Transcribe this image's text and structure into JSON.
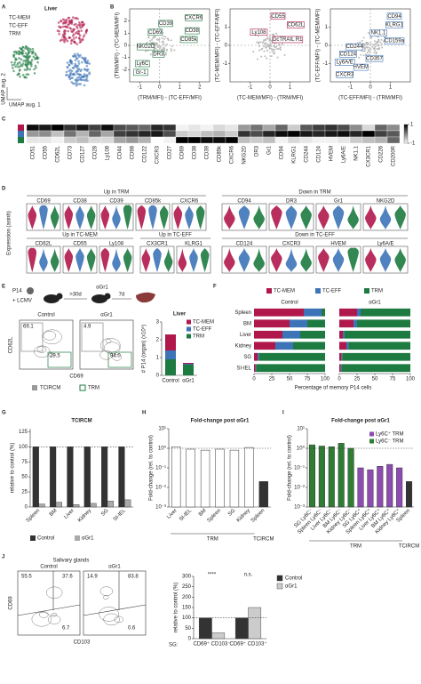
{
  "panels": {
    "labels": [
      "A",
      "B",
      "C",
      "D",
      "E",
      "F",
      "G",
      "H",
      "I",
      "J"
    ],
    "a": {
      "title": "Liver",
      "legend": [
        {
          "name": "TC-MEM",
          "color": "#b0174a"
        },
        {
          "name": "TC-EFF",
          "color": "#3d74b8"
        },
        {
          "name": "TRM",
          "color": "#1d7a40"
        }
      ],
      "x_label": "UMAP aug. 1",
      "y_label": "UMAP aug. 2"
    },
    "b": {
      "plots": [
        {
          "x_label": "(TRM/MFI) - (TC-EFF/MFI)",
          "y_label": "(TRM/MFI) - (TC-MEM/MFI)",
          "xlim": [
            -1.5,
            2.5
          ],
          "ylim": [
            -3,
            3
          ],
          "xticks": [
            -1,
            0,
            1,
            2
          ],
          "yticks": [
            -2,
            -1,
            0,
            1,
            2
          ],
          "genes": [
            "CXCR6",
            "CD39",
            "CD38",
            "CD69",
            "CD85k",
            "NKG2D",
            "DR3",
            "Ly6C",
            "Gr-1"
          ]
        },
        {
          "x_label": "(TC-MEM/MFI) - (TRM/MFI)",
          "y_label": "(TC-MEM/MFI) - (TC-EFF/MFI)",
          "xlim": [
            -2,
            2
          ],
          "ylim": [
            -2,
            2
          ],
          "xticks": [
            -1,
            0,
            1
          ],
          "yticks": [
            -1,
            0,
            1
          ],
          "genes": [
            "CD55",
            "CD62L",
            "Ly108",
            "DcTRAIL R1"
          ]
        },
        {
          "x_label": "(TC-EFF/MFI) - (TRM/MFI)",
          "y_label": "(TC-EFF/MFI) - (TC-MEM/MFI)",
          "xlim": [
            -2,
            2
          ],
          "ylim": [
            -2,
            2
          ],
          "xticks": [
            -1,
            0,
            1
          ],
          "yticks": [
            -1,
            0,
            1
          ],
          "genes": [
            "CD94",
            "KLRG1",
            "NK1.1",
            "CD159a",
            "CD244",
            "CD124",
            "Ly6A/E",
            "CD357",
            "HVEM",
            "CXCR3"
          ]
        }
      ]
    },
    "c": {
      "markers": [
        "CD51",
        "CD55",
        "CD62L",
        "CD73",
        "CD127",
        "CD28",
        "Ly108",
        "CD44",
        "CD98",
        "CD122",
        "CXCR3",
        "CD27",
        "CD69",
        "CD38",
        "CD39",
        "CD85k",
        "CXCR6",
        "NKG2D",
        "DR3",
        "Gr1",
        "CD94",
        "KLRG1",
        "CD244",
        "CD124",
        "HVEM",
        "Ly6A/E",
        "NK1.1",
        "CX3CR1",
        "CD226",
        "CD200R"
      ],
      "rows": [
        [
          0.9,
          0.8,
          1,
          0.6,
          0.8,
          0.5,
          0.9,
          0.4,
          0.3,
          0.2,
          0.7,
          0.6,
          -0.9,
          -0.8,
          -0.9,
          -0.7,
          -0.8,
          -0.2,
          0.1,
          -0.3,
          0.2,
          -0.6,
          0.3,
          0.5,
          0.6,
          0.4,
          -0.1,
          -0.7,
          0.2,
          -0.1
        ],
        [
          -0.2,
          -0.1,
          -0.5,
          0.1,
          -0.4,
          0.2,
          -0.3,
          0.5,
          0.6,
          0.7,
          0.8,
          0.4,
          -0.6,
          -0.7,
          -0.5,
          -0.4,
          -0.6,
          0.6,
          0.4,
          0.7,
          0.9,
          1,
          0.8,
          0.7,
          0.8,
          0.9,
          0.7,
          1,
          0.5,
          0.3
        ],
        [
          -0.8,
          -0.8,
          -0.9,
          -0.6,
          -0.5,
          -0.7,
          -0.7,
          -0.3,
          -0.2,
          -0.4,
          -1,
          -0.9,
          1,
          1,
          0.9,
          0.9,
          1,
          -0.5,
          -0.6,
          -0.5,
          -0.9,
          -0.7,
          -0.8,
          -0.9,
          -0.9,
          -0.8,
          -0.6,
          -0.5,
          -0.4,
          0.2
        ]
      ],
      "scale_ticks": [
        -1,
        1
      ]
    },
    "d": {
      "y_label": "Expression (asinh)",
      "groups": [
        {
          "title": "Up in TRM",
          "markers": [
            "CD69",
            "CD38",
            "CD39",
            "CD85k",
            "CXCR6"
          ]
        },
        {
          "title": "Down in TRM",
          "markers": [
            "CD94",
            "DR3",
            "Gr1",
            "NKG2D"
          ]
        },
        {
          "title": "Up in TC-MEM",
          "markers": [
            "CD62L",
            "CD55",
            "Ly108"
          ]
        },
        {
          "title": "Up in TC-EFF",
          "markers": [
            "CX3CR1",
            "KLRG1"
          ]
        },
        {
          "title": "Down in TC-EFF",
          "markers": [
            "CD124",
            "CXCR3",
            "HVEM",
            "Ly6A/E"
          ]
        }
      ]
    },
    "e": {
      "p14": "P14",
      "infection": "+ LCMV",
      "wait": ">30d",
      "treatment": "αGr1",
      "chase": "7d",
      "flow": [
        {
          "title": "Control",
          "gates": [
            "69.1",
            "29.5"
          ]
        },
        {
          "title": "αGr1",
          "gates": [
            "4.9",
            "94.0"
          ]
        }
      ],
      "x_label": "CD69",
      "y_label": "CD62L",
      "legend": [
        "TCIRCM",
        "TRM"
      ]
    },
    "h": {
      "group_labels": [
        "TRM",
        "TCIRCM"
      ]
    },
    "i": {
      "group_labels": [
        "TRM",
        "TCIRCM"
      ]
    },
    "j": {
      "title": "Salivary glands",
      "flow": [
        {
          "title": "Control",
          "gates": [
            "55.5",
            "37.6",
            "6.7"
          ]
        },
        {
          "title": "αGr1",
          "gates": [
            "14.9",
            "83.8",
            "0.6"
          ]
        }
      ],
      "x_label": "CD103",
      "y_label": "CD69",
      "prefix": "SG:"
    }
  },
  "chart_data": [
    {
      "type": "bar",
      "stacked": true,
      "title": "Liver",
      "y_label": "# P14 (organ) (x10⁵)",
      "categories": [
        "Control",
        "αGr1"
      ],
      "series": [
        {
          "name": "TRM",
          "color": "#1d7a40",
          "values": [
            0.9,
            0.6
          ]
        },
        {
          "name": "TC-EFF",
          "color": "#3d74b8",
          "values": [
            0.5,
            0.05
          ]
        },
        {
          "name": "TC-MEM",
          "color": "#b0174a",
          "values": [
            0.9,
            0.05
          ]
        }
      ],
      "ylim": [
        0,
        3
      ],
      "yticks": [
        0,
        1,
        2,
        3
      ]
    },
    {
      "type": "barh",
      "stacked": true,
      "facets": [
        "Control",
        "αGr1"
      ],
      "categories": [
        "Spleen",
        "BM",
        "Liver",
        "Kidney",
        "SG",
        "SI-IEL"
      ],
      "series": [
        {
          "name": "TC-MEM",
          "color": "#b0174a",
          "values": [
            [
              70,
              50,
              40,
              30,
              5,
              2
            ],
            [
              25,
              20,
              5,
              10,
              3,
              2
            ]
          ]
        },
        {
          "name": "TC-EFF",
          "color": "#3d74b8",
          "values": [
            [
              25,
              25,
              25,
              25,
              2,
              1
            ],
            [
              5,
              5,
              2,
              3,
              1,
              1
            ]
          ]
        },
        {
          "name": "TRM",
          "color": "#1d7a40",
          "values": [
            [
              5,
              25,
              35,
              45,
              93,
              97
            ],
            [
              70,
              75,
              93,
              87,
              96,
              97
            ]
          ]
        }
      ],
      "x_label": "Percentage of memory P14 cells",
      "xlim": [
        0,
        100
      ],
      "xticks": [
        0,
        25,
        50,
        75,
        100
      ]
    },
    {
      "type": "bar",
      "title": "TCIRCM",
      "y_label": "relative to control (%)",
      "categories": [
        "Spleen",
        "BM",
        "Liver",
        "Kidney",
        "SG",
        "SI-IEL"
      ],
      "series": [
        {
          "name": "Control",
          "color": "#333333",
          "values": [
            100,
            100,
            100,
            100,
            100,
            100
          ]
        },
        {
          "name": "αGr1",
          "color": "#aaaaaa",
          "values": [
            5,
            8,
            4,
            6,
            10,
            12
          ]
        }
      ],
      "ylim": [
        0,
        130
      ],
      "yticks": [
        0,
        25,
        50,
        75,
        100,
        125
      ],
      "ref_line": 100
    },
    {
      "type": "bar",
      "log_y": true,
      "title": "Fold-change post αGr1",
      "y_label": "Fold-change (rel. to control)",
      "categories": [
        "Liver",
        "SI-IEL",
        "BM",
        "Spleen",
        "SG",
        "Kidney",
        "Spleen"
      ],
      "values": [
        1.2,
        0.9,
        0.8,
        0.9,
        0.8,
        1.1,
        0.02
      ],
      "colors": [
        "#ffffff",
        "#ffffff",
        "#ffffff",
        "#ffffff",
        "#ffffff",
        "#ffffff",
        "#333333"
      ],
      "ylim": [
        0.001,
        10
      ],
      "yticks": [
        {
          "value": 0.001,
          "label": "10⁻³"
        },
        {
          "value": 0.01,
          "label": "10⁻²"
        },
        {
          "value": 0.1,
          "label": "10⁻¹"
        },
        {
          "value": 1,
          "label": "10⁰"
        },
        {
          "value": 10,
          "label": "10¹"
        }
      ],
      "ref_line": 1
    },
    {
      "type": "bar",
      "log_y": true,
      "title": "Fold-change post αGr1",
      "y_label": "Fold-change (rel. to control)",
      "categories": [
        "SG Ly6C⁻",
        "Spleen Ly6C⁻",
        "Liver Ly6C⁻",
        "BM Ly6C⁻",
        "Kidney Ly6C⁻",
        "SG Ly6C⁺",
        "Spleen Ly6C⁺",
        "Liver Ly6C⁺",
        "BM Ly6C⁺",
        "Kidney Ly6C⁺",
        "Spleen"
      ],
      "values": [
        1.5,
        1.3,
        1.2,
        1.8,
        1.0,
        0.1,
        0.08,
        0.12,
        0.15,
        0.1,
        0.02
      ],
      "colors": [
        "#2e7d32",
        "#2e7d32",
        "#2e7d32",
        "#2e7d32",
        "#2e7d32",
        "#8e4bb0",
        "#8e4bb0",
        "#8e4bb0",
        "#8e4bb0",
        "#8e4bb0",
        "#333333"
      ],
      "legend": [
        {
          "name": "Ly6C⁺ TRM",
          "color": "#8e4bb0"
        },
        {
          "name": "Ly6C⁻ TRM",
          "color": "#2e7d32"
        }
      ],
      "ylim": [
        0.001,
        10
      ],
      "yticks": [
        {
          "value": 0.001,
          "label": "10⁻³"
        },
        {
          "value": 0.01,
          "label": "10⁻²"
        },
        {
          "value": 0.1,
          "label": "10⁻¹"
        },
        {
          "value": 1,
          "label": "10⁰"
        },
        {
          "value": 10,
          "label": "10¹"
        }
      ],
      "ref_line": 1
    },
    {
      "type": "bar",
      "y_label": "relative to control (%)",
      "categories": [
        "CD69⁺ CD103⁻",
        "CD69⁺ CD103⁺"
      ],
      "series": [
        {
          "name": "Control",
          "color": "#333333",
          "values": [
            100,
            100
          ]
        },
        {
          "name": "αGr1",
          "color": "#cccccc",
          "values": [
            28,
            150
          ]
        }
      ],
      "annotations": [
        "****",
        "n.s."
      ],
      "ylim": [
        0,
        300
      ],
      "yticks": [
        0,
        50,
        100,
        150,
        200,
        250,
        300
      ],
      "ref_line": 100
    }
  ]
}
